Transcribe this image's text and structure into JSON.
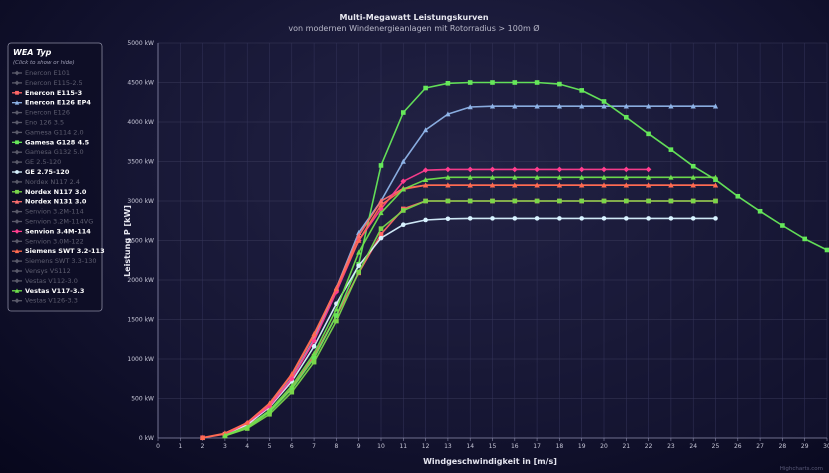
{
  "chart_data": {
    "type": "line",
    "title": "Multi-Megawatt Leistungskurven",
    "subtitle": "von modernen Windenergieanlagen mit Rotorradius > 100m Ø",
    "xlabel": "Windgeschwindigkeit in [m/s]",
    "ylabel": "Leistung P [kW]",
    "xlim": [
      0,
      30
    ],
    "ylim": [
      0,
      5000
    ],
    "x_ticks": [
      0,
      1,
      2,
      3,
      4,
      5,
      6,
      7,
      8,
      9,
      10,
      11,
      12,
      13,
      14,
      15,
      16,
      17,
      18,
      19,
      20,
      21,
      22,
      23,
      24,
      25,
      26,
      27,
      28,
      29,
      30
    ],
    "y_ticks": [
      {
        "value": 0,
        "label": "0 kW"
      },
      {
        "value": 500,
        "label": "500 kW"
      },
      {
        "value": 1000,
        "label": "1000 kW"
      },
      {
        "value": 1500,
        "label": "1500 kW"
      },
      {
        "value": 2000,
        "label": "2000 kW"
      },
      {
        "value": 2500,
        "label": "2500 kW"
      },
      {
        "value": 3000,
        "label": "3000 kW"
      },
      {
        "value": 3500,
        "label": "3500 kW"
      },
      {
        "value": 4000,
        "label": "4000 kW"
      },
      {
        "value": 4500,
        "label": "4500 kW"
      },
      {
        "value": 5000,
        "label": "5000 kW"
      }
    ],
    "grid": true,
    "credit": "Highcharts.com",
    "legend": {
      "title": "WEA Typ",
      "hint": "(Click to show or hide)",
      "placement": "left"
    },
    "hidden_color": "#5a5a6a",
    "series": [
      {
        "name": "Enercon E101",
        "visible": false,
        "marker": "diamond",
        "color": "#5a5a6a",
        "x": [],
        "y": []
      },
      {
        "name": "Enercon E115-2.5",
        "visible": false,
        "marker": "diamond",
        "color": "#5a5a6a",
        "x": [],
        "y": []
      },
      {
        "name": "Enercon E115-3",
        "visible": true,
        "marker": "square",
        "color": "#ff6666",
        "x": [
          2,
          3,
          4,
          5,
          6,
          7,
          8,
          9,
          10,
          11,
          12,
          13,
          14,
          15,
          16,
          17,
          18,
          19,
          20,
          21,
          22,
          23,
          24,
          25
        ],
        "y": [
          3,
          49,
          155,
          339,
          628,
          1036,
          1549,
          2090,
          2580,
          2900,
          3000,
          3000,
          3000,
          3000,
          3000,
          3000,
          3000,
          3000,
          3000,
          3000,
          3000,
          3000,
          3000,
          3000
        ]
      },
      {
        "name": "Enercon E126 EP4",
        "visible": true,
        "marker": "triangle",
        "color": "#8fb4e8",
        "x": [
          3,
          4,
          5,
          6,
          7,
          8,
          9,
          10,
          11,
          12,
          13,
          14,
          15,
          16,
          17,
          18,
          19,
          20,
          21,
          22,
          23,
          24,
          25
        ],
        "y": [
          55,
          175,
          410,
          760,
          1250,
          1900,
          2600,
          3000,
          3500,
          3900,
          4100,
          4190,
          4200,
          4200,
          4200,
          4200,
          4200,
          4200,
          4200,
          4200,
          4200,
          4200,
          4200
        ]
      },
      {
        "name": "Enercon E126",
        "visible": false,
        "marker": "diamond",
        "color": "#5a5a6a",
        "x": [],
        "y": []
      },
      {
        "name": "Eno 126 3.5",
        "visible": false,
        "marker": "diamond",
        "color": "#5a5a6a",
        "x": [],
        "y": []
      },
      {
        "name": "Gamesa G114 2.0",
        "visible": false,
        "marker": "diamond",
        "color": "#5a5a6a",
        "x": [],
        "y": []
      },
      {
        "name": "Gamesa G128 4.5",
        "visible": true,
        "marker": "square",
        "color": "#66e85a",
        "x": [
          3,
          4,
          5,
          6,
          7,
          8,
          9,
          10,
          11,
          12,
          13,
          14,
          15,
          16,
          17,
          18,
          19,
          20,
          21,
          22,
          23,
          24,
          25,
          26,
          27,
          28,
          29,
          30
        ],
        "y": [
          28,
          130,
          330,
          620,
          1010,
          1550,
          2200,
          3450,
          4120,
          4430,
          4490,
          4500,
          4500,
          4500,
          4500,
          4480,
          4400,
          4260,
          4060,
          3850,
          3650,
          3440,
          3270,
          3060,
          2870,
          2690,
          2520,
          2380
        ]
      },
      {
        "name": "Gamesa G132 5.0",
        "visible": false,
        "marker": "diamond",
        "color": "#5a5a6a",
        "x": [],
        "y": []
      },
      {
        "name": "GE 2.5-120",
        "visible": false,
        "marker": "diamond",
        "color": "#5a5a6a",
        "x": [],
        "y": []
      },
      {
        "name": "GE 2.75-120",
        "visible": true,
        "marker": "circle",
        "color": "#d8f2ff",
        "x": [
          3,
          4,
          5,
          6,
          7,
          8,
          9,
          10,
          11,
          12,
          13,
          14,
          15,
          16,
          17,
          18,
          19,
          20,
          21,
          22,
          23,
          24,
          25
        ],
        "y": [
          48,
          168,
          390,
          715,
          1160,
          1700,
          2180,
          2530,
          2700,
          2760,
          2775,
          2780,
          2780,
          2780,
          2780,
          2780,
          2780,
          2780,
          2780,
          2780,
          2780,
          2780,
          2780
        ]
      },
      {
        "name": "Nordex N117 2.4",
        "visible": false,
        "marker": "diamond",
        "color": "#5a5a6a",
        "x": [],
        "y": []
      },
      {
        "name": "Nordex N117 3.0",
        "visible": true,
        "marker": "square",
        "color": "#7ad64a",
        "x": [
          3,
          4,
          5,
          6,
          7,
          8,
          9,
          10,
          11,
          12,
          13,
          14,
          15,
          16,
          17,
          18,
          19,
          20,
          21,
          22,
          23,
          24,
          25
        ],
        "y": [
          26,
          120,
          300,
          580,
          960,
          1480,
          2100,
          2650,
          2880,
          3000,
          3000,
          3000,
          3000,
          3000,
          3000,
          3000,
          3000,
          3000,
          3000,
          3000,
          3000,
          3000,
          3000
        ]
      },
      {
        "name": "Nordex N131 3.0",
        "visible": true,
        "marker": "triangle",
        "color": "#ff6f6f",
        "x": [
          3,
          4,
          5,
          6,
          7,
          8,
          9,
          10,
          11,
          12,
          13,
          14,
          15,
          16,
          17,
          18,
          19,
          20,
          21,
          22,
          23,
          24,
          25
        ],
        "y": [
          62,
          190,
          430,
          800,
          1300,
          1900,
          2560,
          3000,
          3160,
          3200,
          3200,
          3200,
          3200,
          3200,
          3200,
          3200,
          3200,
          3200,
          3200,
          3200,
          3200,
          3200,
          3200
        ]
      },
      {
        "name": "Senvion 3.2M-114",
        "visible": false,
        "marker": "diamond",
        "color": "#5a5a6a",
        "x": [],
        "y": []
      },
      {
        "name": "Senvion 3.2M-114VG",
        "visible": false,
        "marker": "diamond",
        "color": "#5a5a6a",
        "x": [],
        "y": []
      },
      {
        "name": "Senvion 3.4M-114",
        "visible": true,
        "marker": "diamond",
        "color": "#ff3d8e",
        "x": [
          3,
          4,
          5,
          6,
          7,
          8,
          9,
          10,
          11,
          12,
          13,
          14,
          15,
          16,
          17,
          18,
          19,
          20,
          21,
          22
        ],
        "y": [
          45,
          190,
          400,
          750,
          1230,
          1850,
          2500,
          2900,
          3250,
          3390,
          3400,
          3400,
          3400,
          3400,
          3400,
          3400,
          3400,
          3400,
          3400,
          3400
        ]
      },
      {
        "name": "Senvion 3.0M-122",
        "visible": false,
        "marker": "diamond",
        "color": "#5a5a6a",
        "x": [],
        "y": []
      },
      {
        "name": "Siemens SWT 3.2-113",
        "visible": true,
        "marker": "triangle",
        "color": "#ff6b50",
        "x": [
          2,
          3,
          4,
          5,
          6,
          7,
          8,
          9,
          10,
          11,
          12,
          13,
          14,
          15,
          16,
          17,
          18,
          19,
          20,
          21,
          22,
          23,
          24,
          25
        ],
        "y": [
          5,
          60,
          195,
          440,
          810,
          1320,
          1890,
          2500,
          2950,
          3150,
          3200,
          3200,
          3200,
          3200,
          3200,
          3200,
          3200,
          3200,
          3200,
          3200,
          3200,
          3200,
          3200,
          3200
        ]
      },
      {
        "name": "Siemens SWT 3.3-130",
        "visible": false,
        "marker": "diamond",
        "color": "#5a5a6a",
        "x": [],
        "y": []
      },
      {
        "name": "Vensys VS112",
        "visible": false,
        "marker": "diamond",
        "color": "#5a5a6a",
        "x": [],
        "y": []
      },
      {
        "name": "Vestas V112-3.0",
        "visible": false,
        "marker": "diamond",
        "color": "#5a5a6a",
        "x": [],
        "y": []
      },
      {
        "name": "Vestas V117-3.3",
        "visible": true,
        "marker": "triangle",
        "color": "#6fe04c",
        "x": [
          3,
          4,
          5,
          6,
          7,
          8,
          9,
          10,
          11,
          12,
          13,
          14,
          15,
          16,
          17,
          18,
          19,
          20,
          21,
          22,
          23,
          24,
          25
        ],
        "y": [
          35,
          140,
          350,
          660,
          1070,
          1630,
          2350,
          2850,
          3150,
          3270,
          3300,
          3300,
          3300,
          3300,
          3300,
          3300,
          3300,
          3300,
          3300,
          3300,
          3300,
          3300,
          3300
        ]
      },
      {
        "name": "Vestas V126-3.3",
        "visible": false,
        "marker": "diamond",
        "color": "#5a5a6a",
        "x": [],
        "y": []
      }
    ]
  }
}
